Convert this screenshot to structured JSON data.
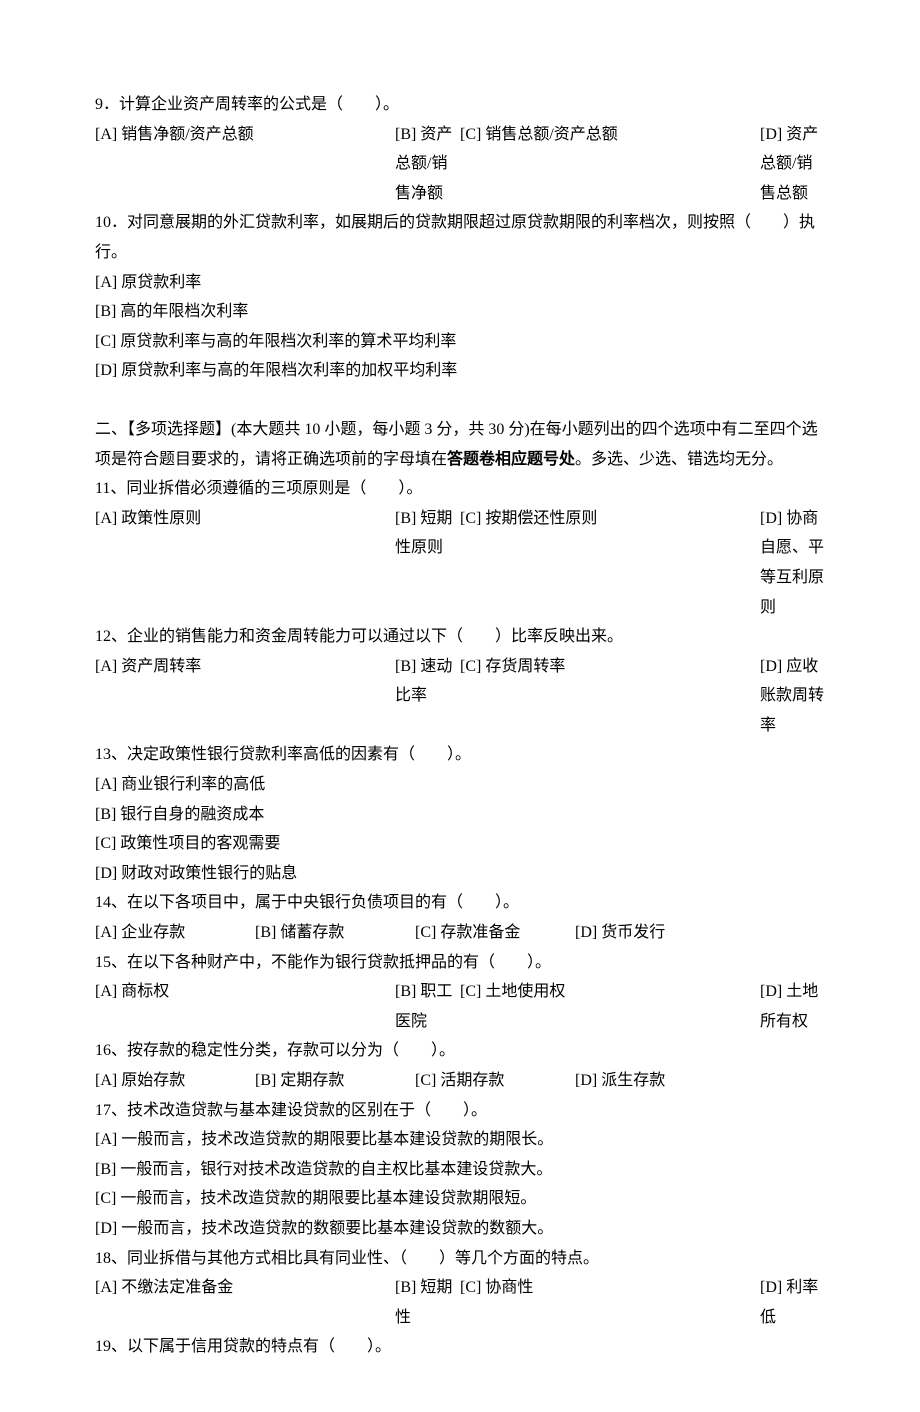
{
  "q9": {
    "text": "9．计算企业资产周转率的公式是（　　）。",
    "a": "[A] 销售净额/资产总额",
    "b": "[B] 资产总额/销售净额",
    "c": "[C] 销售总额/资产总额",
    "d": "[D] 资产总额/销售总额"
  },
  "q10": {
    "text": "10．对同意展期的外汇贷款利率，如展期后的贷款期限超过原贷款期限的利率档次，则按照（　　）执行。",
    "a": "[A] 原贷款利率",
    "b": "[B] 高的年限档次利率",
    "c": "[C] 原贷款利率与高的年限档次利率的算术平均利率",
    "d": "[D] 原贷款利率与高的年限档次利率的加权平均利率"
  },
  "section2": {
    "prefix": "二、【多项选择题】(本大题共 10 小题，每小题 3 分，共 30 分)在每小题列出的四个选项中有二至四个选项是符合题目要求的，请将正确选项前的字母填在",
    "bold1": "答题卷相应题号处",
    "suffix": "。多选、少选、错选均无分。"
  },
  "q11": {
    "text": "11、同业拆借必须遵循的三项原则是（　　）。",
    "a": "[A] 政策性原则",
    "b": "[B] 短期性原则",
    "c": "[C] 按期偿还性原则",
    "d": "[D] 协商自愿、平等互利原则"
  },
  "q12": {
    "text": "12、企业的销售能力和资金周转能力可以通过以下（　　）比率反映出来。",
    "a": "[A] 资产周转率",
    "b": "[B] 速动比率",
    "c": "[C] 存货周转率",
    "d": "[D] 应收账款周转率"
  },
  "q13": {
    "text": "13、决定政策性银行贷款利率高低的因素有（　　）。",
    "a": "[A] 商业银行利率的高低",
    "b": "[B] 银行自身的融资成本",
    "c": "[C] 政策性项目的客观需要",
    "d": "[D] 财政对政策性银行的贴息"
  },
  "q14": {
    "text": "14、在以下各项目中，属于中央银行负债项目的有（　　）。",
    "a": "[A] 企业存款",
    "b": "[B] 储蓄存款",
    "c": "[C] 存款准备金",
    "d": "[D] 货币发行"
  },
  "q15": {
    "text": "15、在以下各种财产中，不能作为银行贷款抵押品的有（　　）。",
    "a": "[A] 商标权",
    "b": "[B] 职工医院",
    "c": "[C] 土地使用权",
    "d": "[D] 土地所有权"
  },
  "q16": {
    "text": "16、按存款的稳定性分类，存款可以分为（　　）。",
    "a": "[A] 原始存款",
    "b": "[B] 定期存款",
    "c": "[C] 活期存款",
    "d": "[D] 派生存款"
  },
  "q17": {
    "text": "17、技术改造贷款与基本建设贷款的区别在于（　　）。",
    "a": "[A] 一般而言，技术改造贷款的期限要比基本建设贷款的期限长。",
    "b": "[B] 一般而言，银行对技术改造贷款的自主权比基本建设贷款大。",
    "c": "[C] 一般而言，技术改造贷款的期限要比基本建设贷款期限短。",
    "d": "[D] 一般而言，技术改造贷款的数额要比基本建设贷款的数额大。"
  },
  "q18": {
    "text": "18、同业拆借与其他方式相比具有同业性、（　　）等几个方面的特点。",
    "a": "[A] 不缴法定准备金",
    "b": "[B] 短期性",
    "c": "[C] 协商性",
    "d": "[D] 利率低"
  },
  "q19": {
    "text": "19、以下属于信用贷款的特点有（　　）。"
  }
}
